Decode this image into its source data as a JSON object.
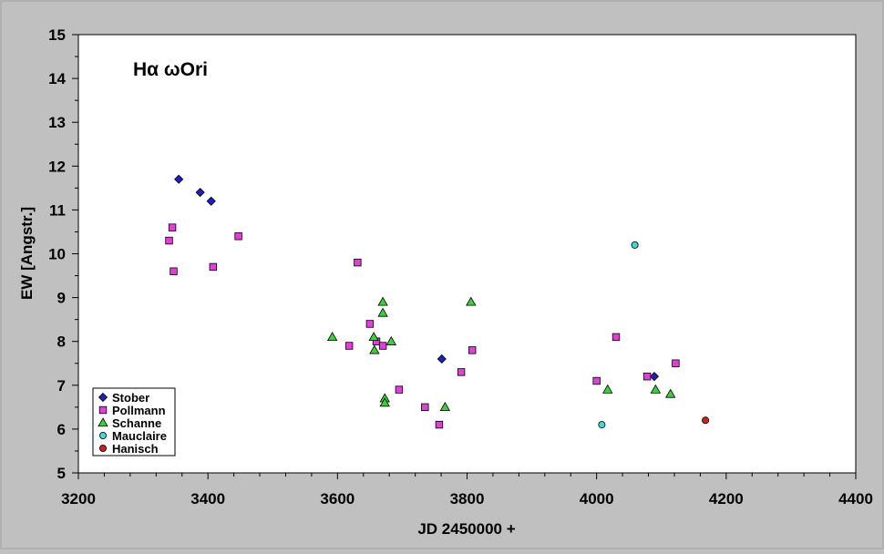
{
  "chart_data": {
    "type": "scatter",
    "title": "Hα ωOri",
    "xlabel": "JD 2450000 +",
    "ylabel": "EW [Angstr.]",
    "xlim": [
      3200,
      4400
    ],
    "ylim": [
      5,
      15
    ],
    "x_ticks": [
      "3200",
      "3400",
      "3600",
      "3800",
      "4000",
      "4200",
      "4400"
    ],
    "y_ticks": [
      "5",
      "6",
      "7",
      "8",
      "9",
      "10",
      "11",
      "12",
      "13",
      "14",
      "15"
    ],
    "grid": false,
    "legend_position": "bottom-left",
    "series": [
      {
        "name": "Stober",
        "marker": "diamond",
        "color": "#1f1fbf",
        "points": [
          [
            3355,
            11.7
          ],
          [
            3388,
            11.4
          ],
          [
            3405,
            11.2
          ],
          [
            3761,
            7.6
          ],
          [
            4089,
            7.2
          ]
        ]
      },
      {
        "name": "Pollmann",
        "marker": "square",
        "color": "#e040d8",
        "points": [
          [
            3340,
            10.3
          ],
          [
            3345,
            10.6
          ],
          [
            3347,
            9.6
          ],
          [
            3408,
            9.7
          ],
          [
            3447,
            10.4
          ],
          [
            3618,
            7.9
          ],
          [
            3631,
            9.8
          ],
          [
            3650,
            8.4
          ],
          [
            3660,
            8.0
          ],
          [
            3670,
            7.9
          ],
          [
            3695,
            6.9
          ],
          [
            3735,
            6.5
          ],
          [
            3757,
            6.1
          ],
          [
            3791,
            7.3
          ],
          [
            3808,
            7.8
          ],
          [
            4000,
            7.1
          ],
          [
            4030,
            8.1
          ],
          [
            4078,
            7.2
          ],
          [
            4122,
            7.5
          ]
        ]
      },
      {
        "name": "Schanne",
        "marker": "triangle",
        "color": "#3ccf3c",
        "points": [
          [
            3592,
            8.1
          ],
          [
            3656,
            8.1
          ],
          [
            3657,
            7.8
          ],
          [
            3670,
            8.9
          ],
          [
            3670,
            8.65
          ],
          [
            3673,
            6.7
          ],
          [
            3673,
            6.6
          ],
          [
            3683,
            8.0
          ],
          [
            3766,
            6.5
          ],
          [
            3806,
            8.9
          ],
          [
            4017,
            6.9
          ],
          [
            4091,
            6.9
          ],
          [
            4114,
            6.8
          ]
        ]
      },
      {
        "name": "Mauclaire",
        "marker": "circle",
        "color": "#40d8d0",
        "points": [
          [
            4008,
            6.1
          ],
          [
            4059,
            10.2
          ]
        ]
      },
      {
        "name": "Hanisch",
        "marker": "circle",
        "color": "#d02020",
        "points": [
          [
            4168,
            6.2
          ]
        ]
      }
    ]
  }
}
